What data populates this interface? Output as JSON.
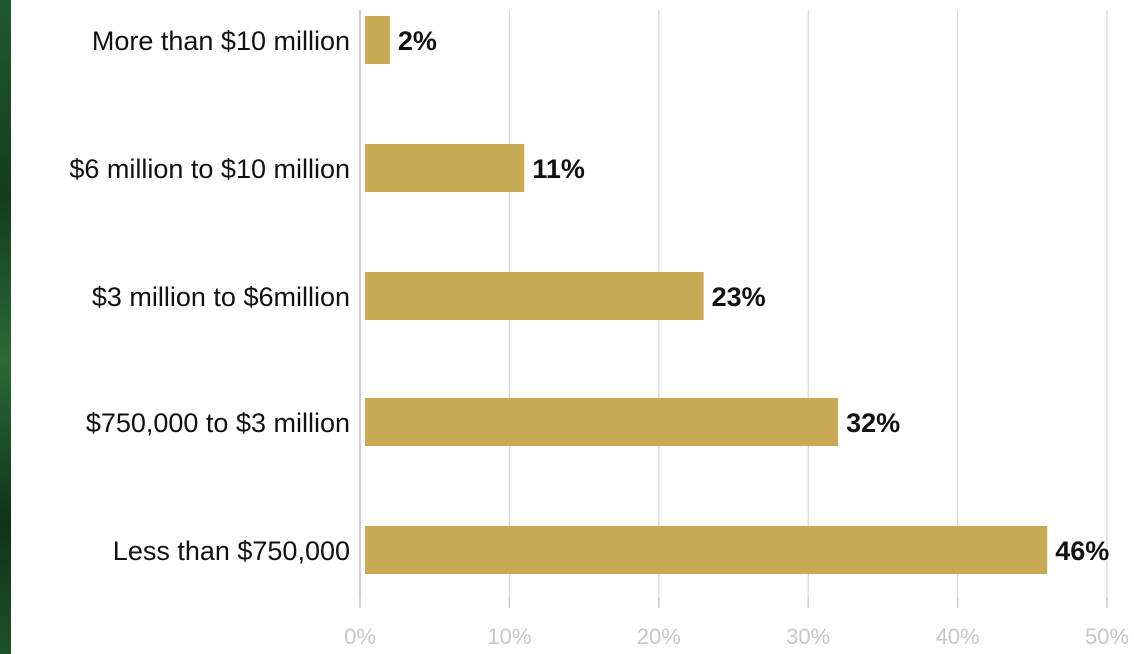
{
  "chart_data": {
    "type": "bar",
    "orientation": "horizontal",
    "categories": [
      "More than $10 million",
      "$6 million to $10 million",
      "$3 million to $6million",
      "$750,000 to $3 million",
      "Less than $750,000"
    ],
    "values": [
      2,
      11,
      23,
      32,
      46
    ],
    "value_labels": [
      "2%",
      "11%",
      "23%",
      "32%",
      "46%"
    ],
    "xlim": [
      0,
      50
    ],
    "xticks": [
      0,
      10,
      20,
      30,
      40,
      50
    ],
    "xtick_labels": [
      "0%",
      "10%",
      "20%",
      "30%",
      "40%",
      "50%"
    ],
    "grid": "vertical",
    "bar_color": "#c8a954",
    "title": "",
    "xlabel": "",
    "ylabel": ""
  }
}
